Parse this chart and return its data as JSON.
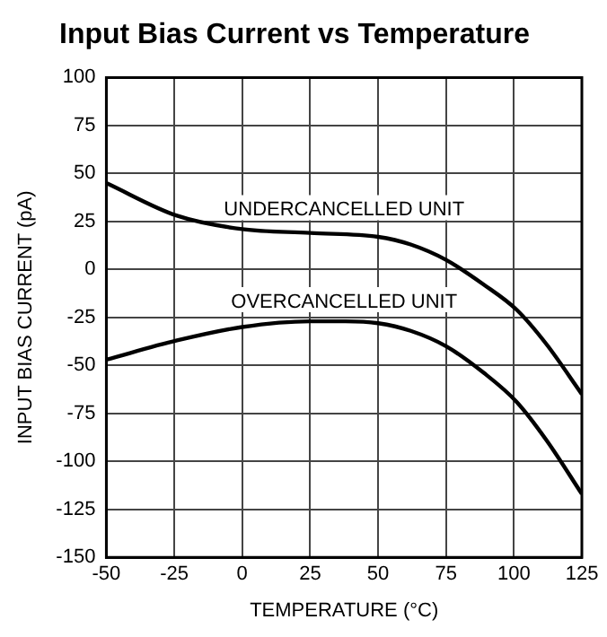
{
  "chart_data": {
    "type": "line",
    "title": "Input Bias Current vs Temperature",
    "xlabel": "TEMPERATURE (°C)",
    "ylabel": "INPUT BIAS CURRENT (pA)",
    "xlim": [
      -50,
      125
    ],
    "xticks": [
      -50,
      -25,
      0,
      25,
      50,
      75,
      100,
      125
    ],
    "ylim": [
      -150,
      100
    ],
    "yticks": [
      -150,
      -125,
      -100,
      -75,
      -50,
      -25,
      0,
      25,
      50,
      75,
      100
    ],
    "grid": true,
    "legend": false,
    "marker": "none",
    "line_style": "solid",
    "series": [
      {
        "name": "UNDERCANCELLED UNIT",
        "color": "#000000",
        "x": [
          -50,
          -24,
          0,
          25,
          50,
          62,
          75,
          89,
          101,
          112,
          125
        ],
        "values": [
          45,
          28,
          21,
          19,
          17,
          13,
          5,
          -8,
          -21,
          -39,
          -65
        ]
      },
      {
        "name": "OVERCANCELLED UNIT",
        "color": "#000000",
        "x": [
          -50,
          -24,
          0,
          25,
          38,
          50,
          62,
          75,
          89,
          101,
          112,
          125
        ],
        "values": [
          -47,
          -37,
          -30,
          -27,
          -27,
          -28,
          -32,
          -40,
          -54,
          -69,
          -89,
          -117
        ]
      }
    ]
  }
}
